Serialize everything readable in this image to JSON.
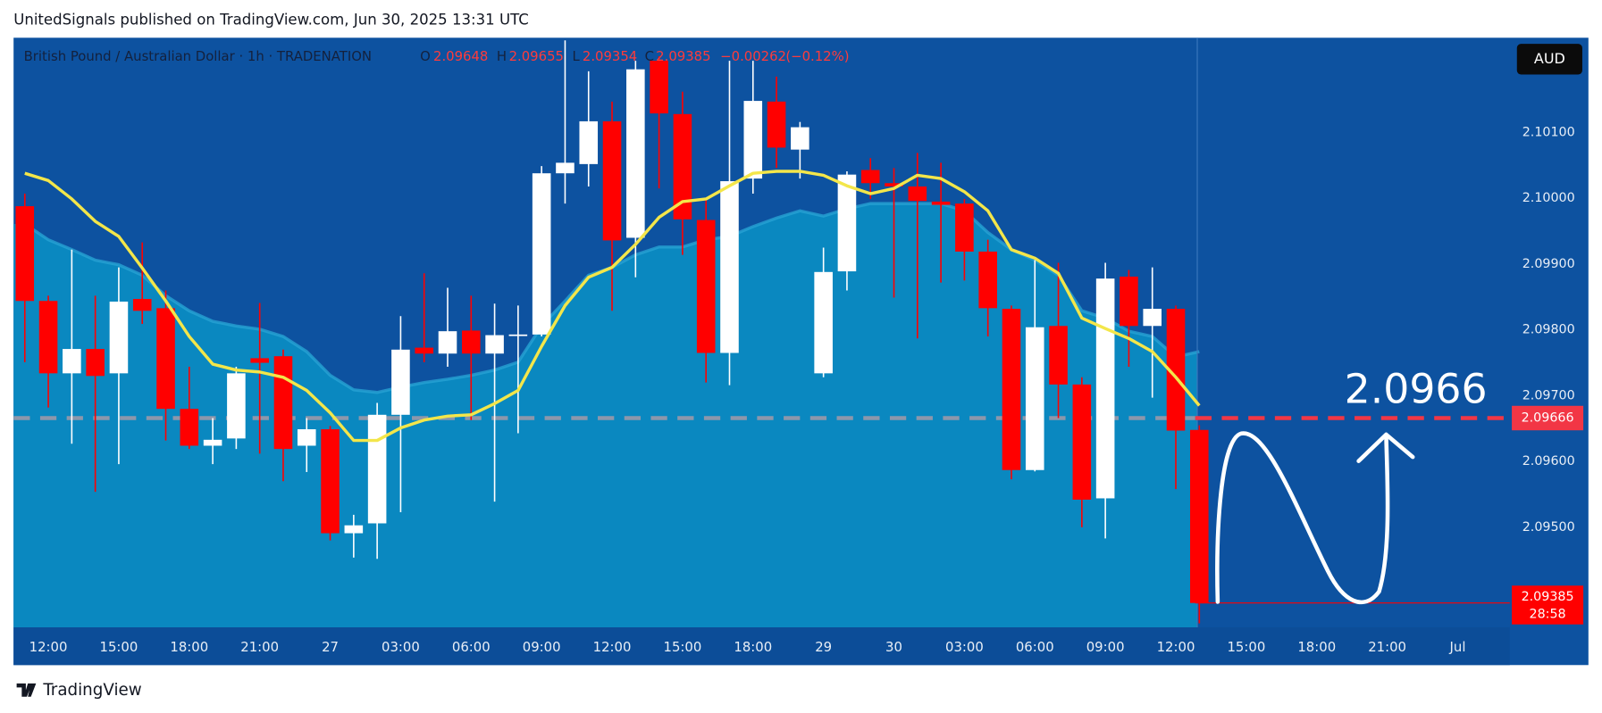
{
  "chart_data": {
    "type": "candlestick",
    "publisher_line": "UnitedSignals published on TradingView.com, Jun 30, 2025 13:31 UTC",
    "title": "British Pound / Australian Dollar · 1h · TRADENATION",
    "legend": {
      "o_label": "O",
      "open": 2.09648,
      "h_label": "H",
      "high": 2.09655,
      "l_label": "L",
      "low": 2.09354,
      "c_label": "C",
      "close": 2.09385,
      "change": {
        "value": -0.00262,
        "label": "−0.00262"
      },
      "change_pct": {
        "value": -0.12,
        "label": "(−0.12%)"
      }
    },
    "currency": "AUD",
    "categories": [
      null,
      "12:00",
      null,
      null,
      "15:00",
      null,
      null,
      "18:00",
      null,
      null,
      "21:00",
      null,
      null,
      "27",
      null,
      null,
      "03:00",
      null,
      null,
      "06:00",
      null,
      null,
      "09:00",
      null,
      null,
      "12:00",
      null,
      null,
      "15:00",
      null,
      null,
      "18:00",
      null,
      null,
      "29",
      null,
      null,
      "30",
      null,
      null,
      "03:00",
      null,
      null,
      "06:00",
      null,
      null,
      "09:00",
      null,
      null,
      "12:00",
      null,
      null,
      "15:00",
      null,
      null,
      "18:00",
      null,
      null,
      "21:00",
      null,
      null,
      "Jul"
    ],
    "open": [
      2.09988,
      2.09844,
      2.09734,
      2.09771,
      2.09734,
      2.09847,
      2.09833,
      2.0968,
      2.09624,
      2.09635,
      2.09757,
      2.0976,
      2.09624,
      2.09649,
      2.09491,
      2.09506,
      2.09671,
      2.09773,
      2.09764,
      2.09799,
      2.09764,
      2.09793,
      2.09793,
      2.10038,
      2.10052,
      2.10117,
      2.0994,
      2.10209,
      2.10128,
      2.09967,
      2.09765,
      2.1003,
      2.10147,
      2.10074,
      2.09734,
      2.09889,
      2.10043,
      2.10023,
      2.10018,
      2.09995,
      2.09992,
      2.09919,
      2.09832,
      2.09587,
      2.09806,
      2.09717,
      2.09544,
      2.09881,
      2.09806,
      2.09832,
      2.09648,
      null,
      null,
      null,
      null,
      null,
      null,
      null,
      null,
      null,
      null,
      null
    ],
    "high": [
      2.10007,
      2.09852,
      2.09922,
      2.09852,
      2.09895,
      2.09933,
      2.0986,
      2.09744,
      2.09666,
      2.09744,
      2.09841,
      2.0977,
      2.09666,
      2.09654,
      2.09519,
      2.09689,
      2.09821,
      2.09886,
      2.09864,
      2.09852,
      2.0984,
      2.09837,
      2.10049,
      2.1024,
      2.10193,
      2.10147,
      2.10209,
      2.10216,
      2.10162,
      2.09999,
      2.10209,
      2.10209,
      2.10185,
      2.10116,
      2.09925,
      2.10041,
      2.10061,
      2.10046,
      2.10069,
      2.10054,
      2.09999,
      2.09937,
      2.09837,
      2.09906,
      2.09902,
      2.09728,
      2.09902,
      2.09891,
      2.09895,
      2.09837,
      2.09655,
      null,
      null,
      null,
      null,
      null,
      null,
      null,
      null,
      null,
      null,
      null
    ],
    "low": [
      2.09751,
      2.09682,
      2.09627,
      2.09554,
      2.09596,
      2.09809,
      2.09632,
      2.09619,
      2.09596,
      2.09619,
      2.09612,
      2.0957,
      2.09584,
      2.0948,
      2.09454,
      2.09452,
      2.09523,
      2.09751,
      2.09744,
      2.09663,
      2.09539,
      2.09643,
      2.0979,
      2.09992,
      2.10018,
      2.09829,
      2.0988,
      2.10015,
      2.09914,
      2.0972,
      2.09716,
      2.10007,
      2.10046,
      2.1003,
      2.09728,
      2.0986,
      2.09999,
      2.09849,
      2.09787,
      2.09872,
      2.09875,
      2.0979,
      2.09573,
      2.09585,
      2.09666,
      2.095,
      2.09483,
      2.09744,
      2.09697,
      2.09558,
      2.09354,
      null,
      null,
      null,
      null,
      null,
      null,
      null,
      null,
      null,
      null,
      null
    ],
    "close": [
      2.09844,
      2.09734,
      2.09771,
      2.0973,
      2.09843,
      2.09829,
      2.0968,
      2.09624,
      2.09633,
      2.09734,
      2.0975,
      2.09619,
      2.09649,
      2.09491,
      2.09503,
      2.09671,
      2.0977,
      2.09764,
      2.09798,
      2.09764,
      2.09792,
      2.09793,
      2.10038,
      2.10054,
      2.10117,
      2.09936,
      2.10196,
      2.10129,
      2.09968,
      2.09765,
      2.10026,
      2.10148,
      2.10077,
      2.10108,
      2.09888,
      2.10036,
      2.10023,
      2.10018,
      2.09996,
      2.0999,
      2.09919,
      2.09833,
      2.09587,
      2.09804,
      2.09717,
      2.09542,
      2.09878,
      2.09806,
      2.09832,
      2.09647,
      2.09385,
      null,
      null,
      null,
      null,
      null,
      null,
      null,
      null,
      null,
      null,
      null
    ],
    "up_color": "#ffffff",
    "down_color": "#ff0000",
    "overlays": [
      {
        "type": "area",
        "color": "#0a88c0",
        "line_color": "#27a2d3",
        "values": [
          2.09961,
          2.09937,
          2.09922,
          2.09906,
          2.09899,
          2.09883,
          2.09852,
          2.09829,
          2.09813,
          2.09806,
          2.09801,
          2.0979,
          2.09767,
          2.09731,
          2.09709,
          2.09705,
          2.09713,
          2.0972,
          2.09725,
          2.09731,
          2.09739,
          2.09751,
          2.09806,
          2.09844,
          2.09883,
          2.09895,
          2.09914,
          2.09926,
          2.09926,
          2.09937,
          2.09942,
          2.09957,
          2.0997,
          2.09981,
          2.09973,
          2.09984,
          2.09992,
          2.09992,
          2.09992,
          2.09992,
          2.09981,
          2.09948,
          2.09922,
          2.09906,
          2.09883,
          2.09829,
          2.09818,
          2.09798,
          2.0979,
          2.09759,
          2.09767,
          null,
          null,
          null,
          null,
          null,
          null,
          null,
          null,
          null,
          null,
          null
        ]
      },
      {
        "type": "line",
        "color": "#f3e64a",
        "values": [
          2.10038,
          2.10027,
          2.09999,
          2.09965,
          2.09942,
          2.09894,
          2.09844,
          2.0979,
          2.09748,
          2.09739,
          2.09736,
          2.09728,
          2.09708,
          2.09674,
          2.09632,
          2.09632,
          2.09651,
          2.09663,
          2.09669,
          2.09671,
          2.09688,
          2.09708,
          2.09775,
          2.09837,
          2.0988,
          2.09895,
          2.0993,
          2.09971,
          2.09995,
          2.09999,
          2.10019,
          2.10038,
          2.10041,
          2.10041,
          2.10035,
          2.10019,
          2.10007,
          2.10015,
          2.10035,
          2.1003,
          2.1001,
          2.09981,
          2.09922,
          2.09909,
          2.09886,
          2.09818,
          2.09802,
          2.09787,
          2.09767,
          2.09728,
          2.09685,
          null,
          null,
          null,
          null,
          null,
          null,
          null,
          null,
          null,
          null,
          null
        ]
      }
    ],
    "ylim": [
      2.09348,
      2.10244
    ],
    "yticks": [
      {
        "value": 2.101,
        "label": "2.10100"
      },
      {
        "value": 2.1,
        "label": "2.10000"
      },
      {
        "value": 2.099,
        "label": "2.09900"
      },
      {
        "value": 2.098,
        "label": "2.09800"
      },
      {
        "value": 2.097,
        "label": "2.09700"
      },
      {
        "value": 2.096,
        "label": "2.09600"
      },
      {
        "value": 2.095,
        "label": "2.09500"
      }
    ],
    "price_line": {
      "value": 2.09666,
      "color": "#f23645"
    },
    "last_price": {
      "value": 2.09385,
      "color": "#ff0000"
    },
    "countdown": "28:58",
    "annotation": "2.0966",
    "branding": "TradingView"
  }
}
